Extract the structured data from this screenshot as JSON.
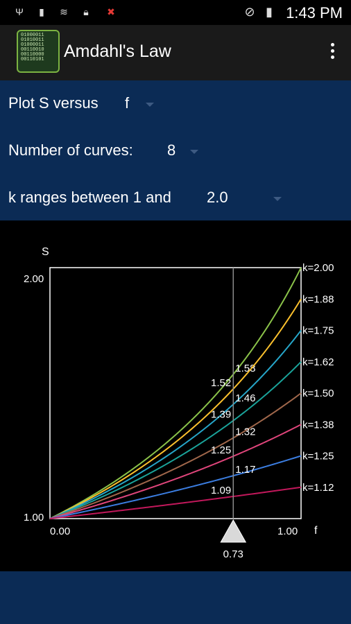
{
  "status_bar": {
    "time": "1:43 PM",
    "icons": [
      "usb-icon",
      "battery-saver-icon",
      "wifi-icon",
      "lock-icon",
      "close-notification-icon",
      "do-not-disturb-icon",
      "battery-icon"
    ]
  },
  "app_bar": {
    "title": "Amdahl's Law",
    "logo_text": "01000011\n01010011\n01000011\n00110010\n00110000\n00110101",
    "menu_icon": "overflow-menu-icon"
  },
  "controls": {
    "plot_label": "Plot S versus",
    "plot_value": "f",
    "curves_label": "Number of curves:",
    "curves_value": "8",
    "k_label": "k ranges between 1 and",
    "k_value": "2.0"
  },
  "chart_data": {
    "type": "line",
    "xlabel": "f",
    "ylabel": "S",
    "xlim": [
      0,
      1
    ],
    "ylim": [
      1,
      2
    ],
    "x_tick_labels": [
      "0.00",
      "1.00"
    ],
    "y_tick_labels": [
      "1.00",
      "2.00"
    ],
    "cursor": {
      "x": 0.73,
      "label": "0.73"
    },
    "series": [
      {
        "name": "k=2.00",
        "k": 2.0,
        "color": "#8bc34a",
        "value_label": "1.58"
      },
      {
        "name": "k=1.88",
        "k": 1.875,
        "color": "#fbc02d",
        "value_label": "1.52"
      },
      {
        "name": "k=1.75",
        "k": 1.75,
        "color": "#26a6c9",
        "value_label": "1.46"
      },
      {
        "name": "k=1.62",
        "k": 1.625,
        "color": "#1aa39a",
        "value_label": "1.39"
      },
      {
        "name": "k=1.50",
        "k": 1.5,
        "color": "#a0674b",
        "value_label": "1.32"
      },
      {
        "name": "k=1.38",
        "k": 1.375,
        "color": "#e0457b",
        "value_label": "1.25"
      },
      {
        "name": "k=1.25",
        "k": 1.25,
        "color": "#3b7de0",
        "value_label": "1.17"
      },
      {
        "name": "k=1.12",
        "k": 1.125,
        "color": "#c2185b",
        "value_label": "1.09"
      }
    ]
  }
}
